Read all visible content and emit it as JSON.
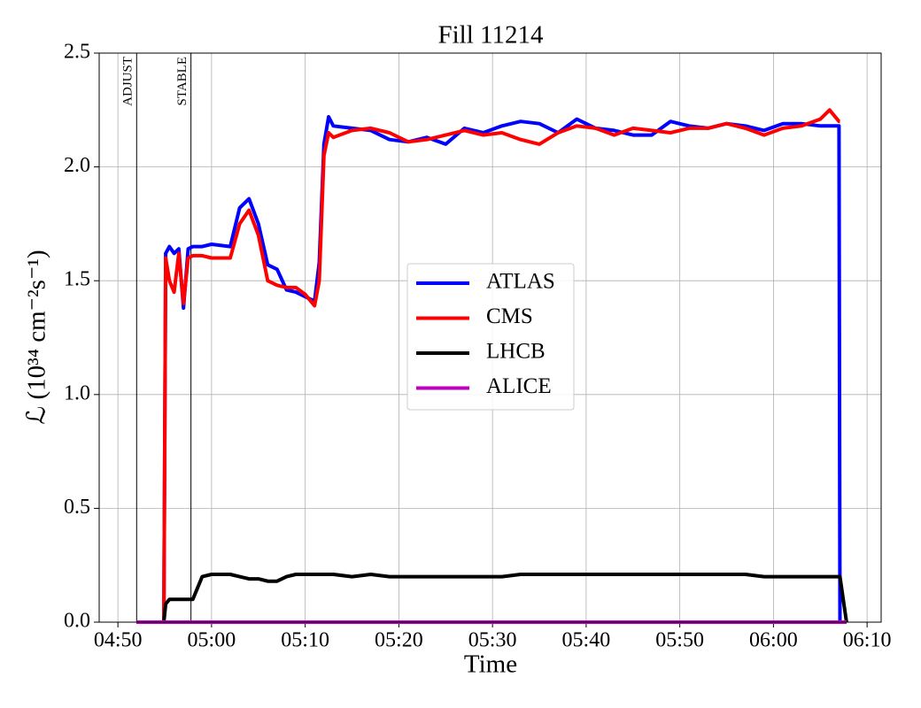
{
  "chart_data": {
    "type": "line",
    "title": "Fill 11214",
    "xlabel": "Time",
    "ylabel": "ℒ (10³⁴ cm⁻²s⁻¹)",
    "x": [
      "04:52",
      "04:54:54",
      "04:55:06",
      "04:55:30",
      "04:56",
      "04:56:30",
      "04:57",
      "04:57:30",
      "04:58",
      "04:59",
      "05:00",
      "05:02",
      "05:03",
      "05:04",
      "05:05",
      "05:06",
      "05:07",
      "05:08",
      "05:09",
      "05:10",
      "05:11",
      "05:11:30",
      "05:12",
      "05:12:30",
      "05:13",
      "05:15",
      "05:17",
      "05:19",
      "05:21",
      "05:23",
      "05:25",
      "05:27",
      "05:29",
      "05:31",
      "05:33",
      "05:35",
      "05:37",
      "05:39",
      "05:41",
      "05:43",
      "05:45",
      "05:47",
      "05:49",
      "05:51",
      "05:53",
      "05:55",
      "05:57",
      "05:59",
      "06:01",
      "06:03",
      "06:05",
      "06:06",
      "06:07",
      "06:07:06",
      "06:07:48"
    ],
    "series": [
      {
        "name": "ATLAS",
        "color": "#0000ff",
        "values": [
          0,
          0,
          1.62,
          1.65,
          1.62,
          1.64,
          1.38,
          1.64,
          1.65,
          1.65,
          1.66,
          1.65,
          1.82,
          1.86,
          1.75,
          1.57,
          1.55,
          1.46,
          1.45,
          1.43,
          1.41,
          1.58,
          2.1,
          2.22,
          2.18,
          2.17,
          2.16,
          2.12,
          2.11,
          2.13,
          2.1,
          2.17,
          2.15,
          2.18,
          2.2,
          2.19,
          2.15,
          2.21,
          2.17,
          2.16,
          2.14,
          2.14,
          2.2,
          2.18,
          2.17,
          2.19,
          2.18,
          2.16,
          2.19,
          2.19,
          2.18,
          2.18,
          2.18,
          0,
          0
        ]
      },
      {
        "name": "CMS",
        "color": "#ff0000",
        "values": [
          0,
          0,
          1.6,
          1.5,
          1.45,
          1.62,
          1.4,
          1.6,
          1.61,
          1.61,
          1.6,
          1.6,
          1.75,
          1.81,
          1.7,
          1.5,
          1.48,
          1.47,
          1.47,
          1.44,
          1.39,
          1.5,
          2.05,
          2.15,
          2.13,
          2.16,
          2.17,
          2.15,
          2.11,
          2.12,
          2.14,
          2.16,
          2.14,
          2.15,
          2.12,
          2.1,
          2.15,
          2.18,
          2.17,
          2.14,
          2.17,
          2.16,
          2.15,
          2.17,
          2.17,
          2.19,
          2.17,
          2.14,
          2.17,
          2.18,
          2.21,
          2.25,
          2.2,
          2.2,
          null
        ]
      },
      {
        "name": "LHCB",
        "color": "#000000",
        "values": [
          0,
          0,
          0.08,
          0.1,
          0.1,
          0.1,
          0.1,
          0.1,
          0.1,
          0.2,
          0.21,
          0.21,
          0.2,
          0.19,
          0.19,
          0.18,
          0.18,
          0.2,
          0.21,
          0.21,
          0.21,
          0.21,
          0.21,
          0.21,
          0.21,
          0.2,
          0.21,
          0.2,
          0.2,
          0.2,
          0.2,
          0.2,
          0.2,
          0.2,
          0.21,
          0.21,
          0.21,
          0.21,
          0.21,
          0.21,
          0.21,
          0.21,
          0.21,
          0.21,
          0.21,
          0.21,
          0.21,
          0.2,
          0.2,
          0.2,
          0.2,
          0.2,
          0.2,
          0.2,
          0
        ]
      },
      {
        "name": "ALICE",
        "color": "#bf00bf",
        "values": [
          0,
          0,
          0,
          0,
          0,
          0,
          0,
          0,
          0,
          0,
          0,
          0,
          0,
          0,
          0,
          0,
          0,
          0,
          0,
          0,
          0,
          0,
          0,
          0,
          0,
          0,
          0,
          0,
          0,
          0,
          0,
          0,
          0,
          0,
          0,
          0,
          0,
          0,
          0,
          0,
          0,
          0,
          0,
          0,
          0,
          0,
          0,
          0,
          0,
          0,
          0,
          0,
          0,
          0,
          0
        ]
      }
    ],
    "annotations": [
      {
        "text": "ADJUST",
        "x": "04:52"
      },
      {
        "text": "STABLE",
        "x": "04:57:48"
      }
    ],
    "xlim": [
      "04:48",
      "06:11:30"
    ],
    "xticks": [
      "04:50",
      "05:00",
      "05:10",
      "05:20",
      "05:30",
      "05:40",
      "05:50",
      "06:00",
      "06:10"
    ],
    "ylim": [
      0,
      2.5
    ],
    "yticks": [
      {
        "value": 0,
        "label": "0.0"
      },
      {
        "value": 0.5,
        "label": "0.5"
      },
      {
        "value": 1,
        "label": "1.0"
      },
      {
        "value": 1.5,
        "label": "1.5"
      },
      {
        "value": 2,
        "label": "2.0"
      },
      {
        "value": 2.5,
        "label": "2.5"
      }
    ],
    "grid": true,
    "legend": "center"
  }
}
